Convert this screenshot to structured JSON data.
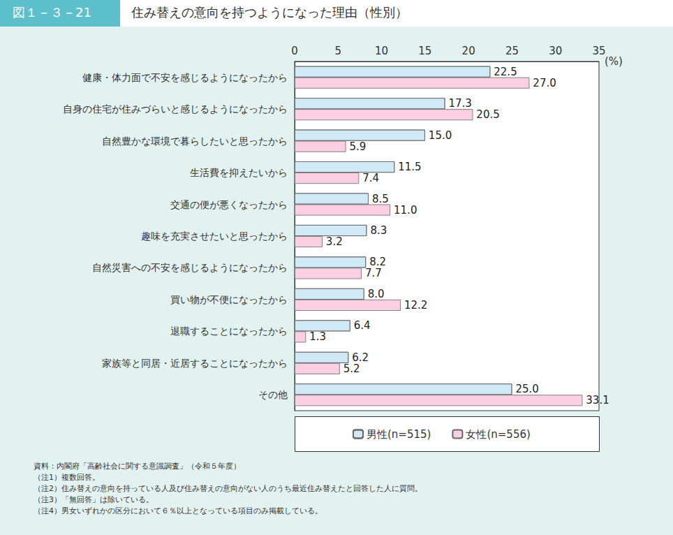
{
  "chart_data": {
    "type": "bar",
    "orientation": "horizontal",
    "figure_number": "図１－３－21",
    "title": "住み替えの意向を持つようになった理由（性別）",
    "x_label": "(%)",
    "categories": [
      "健康・体力面で不安を感じるようになったから",
      "自身の住宅が住みづらいと感じるようになったから",
      "自然豊かな環境で暮らしたいと思ったから",
      "生活費を抑えたいから",
      "交通の便が悪くなったから",
      "趣味を充実させたいと思ったから",
      "自然災害への不安を感じるようになったから",
      "買い物が不便になったから",
      "退職することになったから",
      "家族等と同居・近居することになったから",
      "その他"
    ],
    "series": [
      {
        "name": "男性(n=515)",
        "color": "#cfe9f6",
        "values": [
          22.5,
          17.3,
          15.0,
          11.5,
          8.5,
          8.3,
          8.2,
          8.0,
          6.4,
          6.2,
          25.0
        ],
        "value_labels": [
          "22.5",
          "17.3",
          "15.0",
          "11.5",
          "8.5",
          "8.3",
          "8.2",
          "8.0",
          "6.4",
          "6.2",
          "25.0"
        ]
      },
      {
        "name": "女性(n=556)",
        "color": "#f9cfe1",
        "values": [
          27.0,
          20.5,
          5.9,
          7.4,
          11.0,
          3.2,
          7.7,
          12.2,
          1.3,
          5.2,
          33.1
        ],
        "value_labels": [
          "27.0",
          "20.5",
          "5.9",
          "7.4",
          "11.0",
          "3.2",
          "7.7",
          "12.2",
          "1.3",
          "5.2",
          "33.1"
        ]
      }
    ],
    "xlim": [
      0,
      35
    ],
    "xticks": [
      0,
      5,
      10,
      15,
      20,
      25,
      30,
      35
    ],
    "grid": false,
    "data_labels": true,
    "legend": "bottom",
    "notes": [
      "資料：内閣府「高齢社会に関する意識調査」（令和５年度）",
      "（注1）複数回答。",
      "（注2）住み替えの意向を持っている人及び住み替えの意向がない人のうち最近住み替えたと回答した人に質問。",
      "（注3）「無回答」は除いている。",
      "（注4）男女いずれかの区分において６％以上となっている項目のみ掲載している。"
    ]
  }
}
